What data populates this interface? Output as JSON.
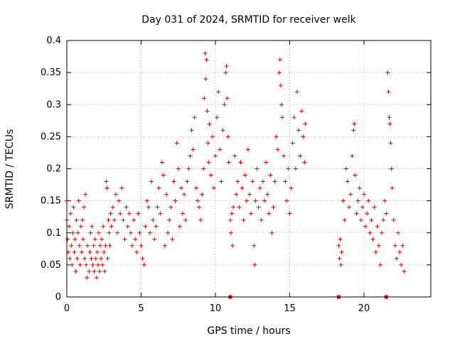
{
  "chart_data": {
    "type": "scatter",
    "title": "Day 031 of 2024, SRMTID for receiver welk",
    "xlabel": "GPS time / hours",
    "ylabel": "SRMTID / TECUs",
    "xlim": [
      0,
      24.5
    ],
    "ylim": [
      0,
      0.4
    ],
    "x_ticks": [
      0,
      5,
      10,
      15,
      20
    ],
    "x_tick_labels": [
      "0",
      "5",
      "10",
      "15",
      "20"
    ],
    "y_ticks": [
      0,
      0.05,
      0.1,
      0.15,
      0.2,
      0.25,
      0.3,
      0.35,
      0.4
    ],
    "y_tick_labels": [
      "0",
      "0.05",
      "0.1",
      "0.15",
      "0.2",
      "0.25",
      "0.3",
      "0.35",
      "0.4"
    ],
    "grid": true,
    "marker": "+",
    "marker_color": "#e00000",
    "series": [
      {
        "name": "SRMTID",
        "points": [
          [
            0.0,
            0.15
          ],
          [
            0.0,
            0.12
          ],
          [
            0.05,
            0.09
          ],
          [
            0.1,
            0.07
          ],
          [
            0.15,
            0.11
          ],
          [
            0.2,
            0.06
          ],
          [
            0.25,
            0.13
          ],
          [
            0.3,
            0.08
          ],
          [
            0.35,
            0.05
          ],
          [
            0.4,
            0.1
          ],
          [
            0.45,
            0.14
          ],
          [
            0.5,
            0.07
          ],
          [
            0.55,
            0.09
          ],
          [
            0.6,
            0.04
          ],
          [
            0.65,
            0.12
          ],
          [
            0.7,
            0.06
          ],
          [
            0.75,
            0.1
          ],
          [
            0.8,
            0.15
          ],
          [
            0.85,
            0.08
          ],
          [
            0.9,
            0.05
          ],
          [
            0.95,
            0.11
          ],
          [
            1.0,
            0.07
          ],
          [
            1.05,
            0.12
          ],
          [
            1.1,
            0.09
          ],
          [
            1.15,
            0.14
          ],
          [
            1.2,
            0.06
          ],
          [
            1.25,
            0.16
          ],
          [
            1.3,
            0.05
          ],
          [
            1.35,
            0.03
          ],
          [
            1.4,
            0.08
          ],
          [
            1.5,
            0.04
          ],
          [
            1.55,
            0.07
          ],
          [
            1.6,
            0.1
          ],
          [
            1.65,
            0.06
          ],
          [
            1.7,
            0.11
          ],
          [
            1.75,
            0.05
          ],
          [
            1.8,
            0.08
          ],
          [
            1.85,
            0.04
          ],
          [
            1.9,
            0.09
          ],
          [
            1.95,
            0.06
          ],
          [
            2.0,
            0.03
          ],
          [
            2.05,
            0.07
          ],
          [
            2.1,
            0.05
          ],
          [
            2.15,
            0.1
          ],
          [
            2.2,
            0.04
          ],
          [
            2.25,
            0.08
          ],
          [
            2.3,
            0.06
          ],
          [
            2.35,
            0.09
          ],
          [
            2.4,
            0.05
          ],
          [
            2.45,
            0.11
          ],
          [
            2.5,
            0.07
          ],
          [
            2.55,
            0.04
          ],
          [
            2.6,
            0.08
          ],
          [
            2.65,
            0.18
          ],
          [
            2.7,
            0.17
          ],
          [
            2.75,
            0.06
          ],
          [
            2.8,
            0.12
          ],
          [
            2.85,
            0.1
          ],
          [
            2.9,
            0.08
          ],
          [
            2.95,
            0.13
          ],
          [
            3.0,
            0.11
          ],
          [
            3.1,
            0.14
          ],
          [
            3.2,
            0.12
          ],
          [
            3.3,
            0.16
          ],
          [
            3.4,
            0.1
          ],
          [
            3.5,
            0.15
          ],
          [
            3.6,
            0.13
          ],
          [
            3.7,
            0.17
          ],
          [
            3.8,
            0.12
          ],
          [
            3.9,
            0.09
          ],
          [
            4.0,
            0.14
          ],
          [
            4.1,
            0.11
          ],
          [
            4.2,
            0.13
          ],
          [
            4.3,
            0.1
          ],
          [
            4.4,
            0.08
          ],
          [
            4.5,
            0.12
          ],
          [
            4.6,
            0.09
          ],
          [
            4.7,
            0.07
          ],
          [
            4.8,
            0.13
          ],
          [
            4.9,
            0.1
          ],
          [
            5.0,
            0.08
          ],
          [
            5.1,
            0.06
          ],
          [
            5.2,
            0.05
          ],
          [
            5.3,
            0.11
          ],
          [
            5.4,
            0.15
          ],
          [
            5.5,
            0.14
          ],
          [
            5.6,
            0.1
          ],
          [
            5.7,
            0.18
          ],
          [
            5.8,
            0.12
          ],
          [
            5.9,
            0.09
          ],
          [
            6.0,
            0.11
          ],
          [
            6.1,
            0.14
          ],
          [
            6.2,
            0.17
          ],
          [
            6.3,
            0.13
          ],
          [
            6.4,
            0.21
          ],
          [
            6.5,
            0.19
          ],
          [
            6.6,
            0.08
          ],
          [
            6.7,
            0.16
          ],
          [
            6.8,
            0.1
          ],
          [
            6.9,
            0.12
          ],
          [
            7.0,
            0.14
          ],
          [
            7.1,
            0.09
          ],
          [
            7.2,
            0.18
          ],
          [
            7.3,
            0.15
          ],
          [
            7.4,
            0.24
          ],
          [
            7.5,
            0.2
          ],
          [
            7.6,
            0.11
          ],
          [
            7.7,
            0.17
          ],
          [
            7.8,
            0.13
          ],
          [
            7.9,
            0.16
          ],
          [
            8.0,
            0.12
          ],
          [
            8.1,
            0.18
          ],
          [
            8.2,
            0.2
          ],
          [
            8.3,
            0.22
          ],
          [
            8.4,
            0.26
          ],
          [
            8.5,
            0.23
          ],
          [
            8.6,
            0.28
          ],
          [
            8.7,
            0.17
          ],
          [
            8.8,
            0.15
          ],
          [
            8.9,
            0.14
          ],
          [
            9.0,
            0.12
          ],
          [
            9.1,
            0.16
          ],
          [
            9.2,
            0.2
          ],
          [
            9.25,
            0.31
          ],
          [
            9.3,
            0.38
          ],
          [
            9.35,
            0.34
          ],
          [
            9.4,
            0.37
          ],
          [
            9.45,
            0.29
          ],
          [
            9.5,
            0.24
          ],
          [
            9.55,
            0.21
          ],
          [
            9.6,
            0.27
          ],
          [
            9.7,
            0.19
          ],
          [
            9.8,
            0.25
          ],
          [
            9.9,
            0.17
          ],
          [
            10.0,
            0.22
          ],
          [
            10.1,
            0.28
          ],
          [
            10.2,
            0.32
          ],
          [
            10.3,
            0.23
          ],
          [
            10.4,
            0.18
          ],
          [
            10.5,
            0.26
          ],
          [
            10.6,
            0.3
          ],
          [
            10.7,
            0.35
          ],
          [
            10.75,
            0.36
          ],
          [
            10.8,
            0.31
          ],
          [
            10.85,
            0.25
          ],
          [
            10.9,
            0.21
          ],
          [
            11.0,
            0.12
          ],
          [
            11.05,
            0.1
          ],
          [
            11.1,
            0.13
          ],
          [
            11.15,
            0.08
          ],
          [
            11.2,
            0.14
          ],
          [
            11.3,
            0.22
          ],
          [
            11.4,
            0.16
          ],
          [
            11.5,
            0.18
          ],
          [
            11.6,
            0.14
          ],
          [
            11.7,
            0.21
          ],
          [
            11.8,
            0.17
          ],
          [
            11.9,
            0.12
          ],
          [
            12.0,
            0.19
          ],
          [
            12.1,
            0.15
          ],
          [
            12.2,
            0.23
          ],
          [
            12.3,
            0.16
          ],
          [
            12.4,
            0.13
          ],
          [
            12.5,
            0.18
          ],
          [
            12.6,
            0.08
          ],
          [
            12.65,
            0.05
          ],
          [
            12.7,
            0.15
          ],
          [
            12.8,
            0.2
          ],
          [
            12.9,
            0.14
          ],
          [
            13.0,
            0.17
          ],
          [
            13.1,
            0.12
          ],
          [
            13.2,
            0.18
          ],
          [
            13.3,
            0.15
          ],
          [
            13.4,
            0.21
          ],
          [
            13.5,
            0.16
          ],
          [
            13.6,
            0.13
          ],
          [
            13.7,
            0.19
          ],
          [
            13.8,
            0.1
          ],
          [
            13.9,
            0.14
          ],
          [
            14.0,
            0.18
          ],
          [
            14.1,
            0.25
          ],
          [
            14.2,
            0.23
          ],
          [
            14.3,
            0.35
          ],
          [
            14.35,
            0.37
          ],
          [
            14.4,
            0.33
          ],
          [
            14.45,
            0.3
          ],
          [
            14.5,
            0.28
          ],
          [
            14.6,
            0.22
          ],
          [
            14.7,
            0.18
          ],
          [
            14.8,
            0.15
          ],
          [
            14.9,
            0.2
          ],
          [
            15.0,
            0.13
          ],
          [
            15.1,
            0.17
          ],
          [
            15.2,
            0.24
          ],
          [
            15.3,
            0.28
          ],
          [
            15.4,
            0.2
          ],
          [
            15.5,
            0.32
          ],
          [
            15.6,
            0.26
          ],
          [
            15.7,
            0.22
          ],
          [
            15.8,
            0.29
          ],
          [
            15.9,
            0.25
          ],
          [
            16.0,
            0.21
          ],
          [
            16.05,
            0.27
          ],
          [
            18.3,
            0.08
          ],
          [
            18.35,
            0.06
          ],
          [
            18.4,
            0.09
          ],
          [
            18.45,
            0.05
          ],
          [
            18.5,
            0.07
          ],
          [
            18.6,
            0.15
          ],
          [
            18.7,
            0.12
          ],
          [
            18.8,
            0.2
          ],
          [
            18.9,
            0.18
          ],
          [
            19.0,
            0.14
          ],
          [
            19.1,
            0.16
          ],
          [
            19.2,
            0.22
          ],
          [
            19.3,
            0.26
          ],
          [
            19.35,
            0.27
          ],
          [
            19.4,
            0.19
          ],
          [
            19.5,
            0.13
          ],
          [
            19.6,
            0.15
          ],
          [
            19.7,
            0.17
          ],
          [
            19.8,
            0.12
          ],
          [
            19.9,
            0.14
          ],
          [
            20.0,
            0.16
          ],
          [
            20.1,
            0.11
          ],
          [
            20.2,
            0.13
          ],
          [
            20.3,
            0.15
          ],
          [
            20.4,
            0.1
          ],
          [
            20.5,
            0.12
          ],
          [
            20.6,
            0.09
          ],
          [
            20.7,
            0.14
          ],
          [
            20.8,
            0.07
          ],
          [
            20.9,
            0.11
          ],
          [
            21.0,
            0.08
          ],
          [
            21.1,
            0.05
          ],
          [
            21.2,
            0.1
          ],
          [
            21.3,
            0.12
          ],
          [
            21.4,
            0.15
          ],
          [
            21.5,
            0.13
          ],
          [
            21.6,
            0.35
          ],
          [
            21.65,
            0.32
          ],
          [
            21.7,
            0.28
          ],
          [
            21.75,
            0.27
          ],
          [
            21.8,
            0.24
          ],
          [
            21.85,
            0.2
          ],
          [
            21.9,
            0.17
          ],
          [
            22.0,
            0.12
          ],
          [
            22.1,
            0.08
          ],
          [
            22.2,
            0.06
          ],
          [
            22.3,
            0.1
          ],
          [
            22.4,
            0.07
          ],
          [
            22.5,
            0.05
          ],
          [
            22.6,
            0.08
          ],
          [
            22.7,
            0.04
          ]
        ]
      },
      {
        "name": "zero markers",
        "marker": "square",
        "points": [
          [
            11.0,
            0.0
          ],
          [
            18.3,
            0.0
          ],
          [
            21.5,
            0.0
          ]
        ]
      }
    ]
  }
}
